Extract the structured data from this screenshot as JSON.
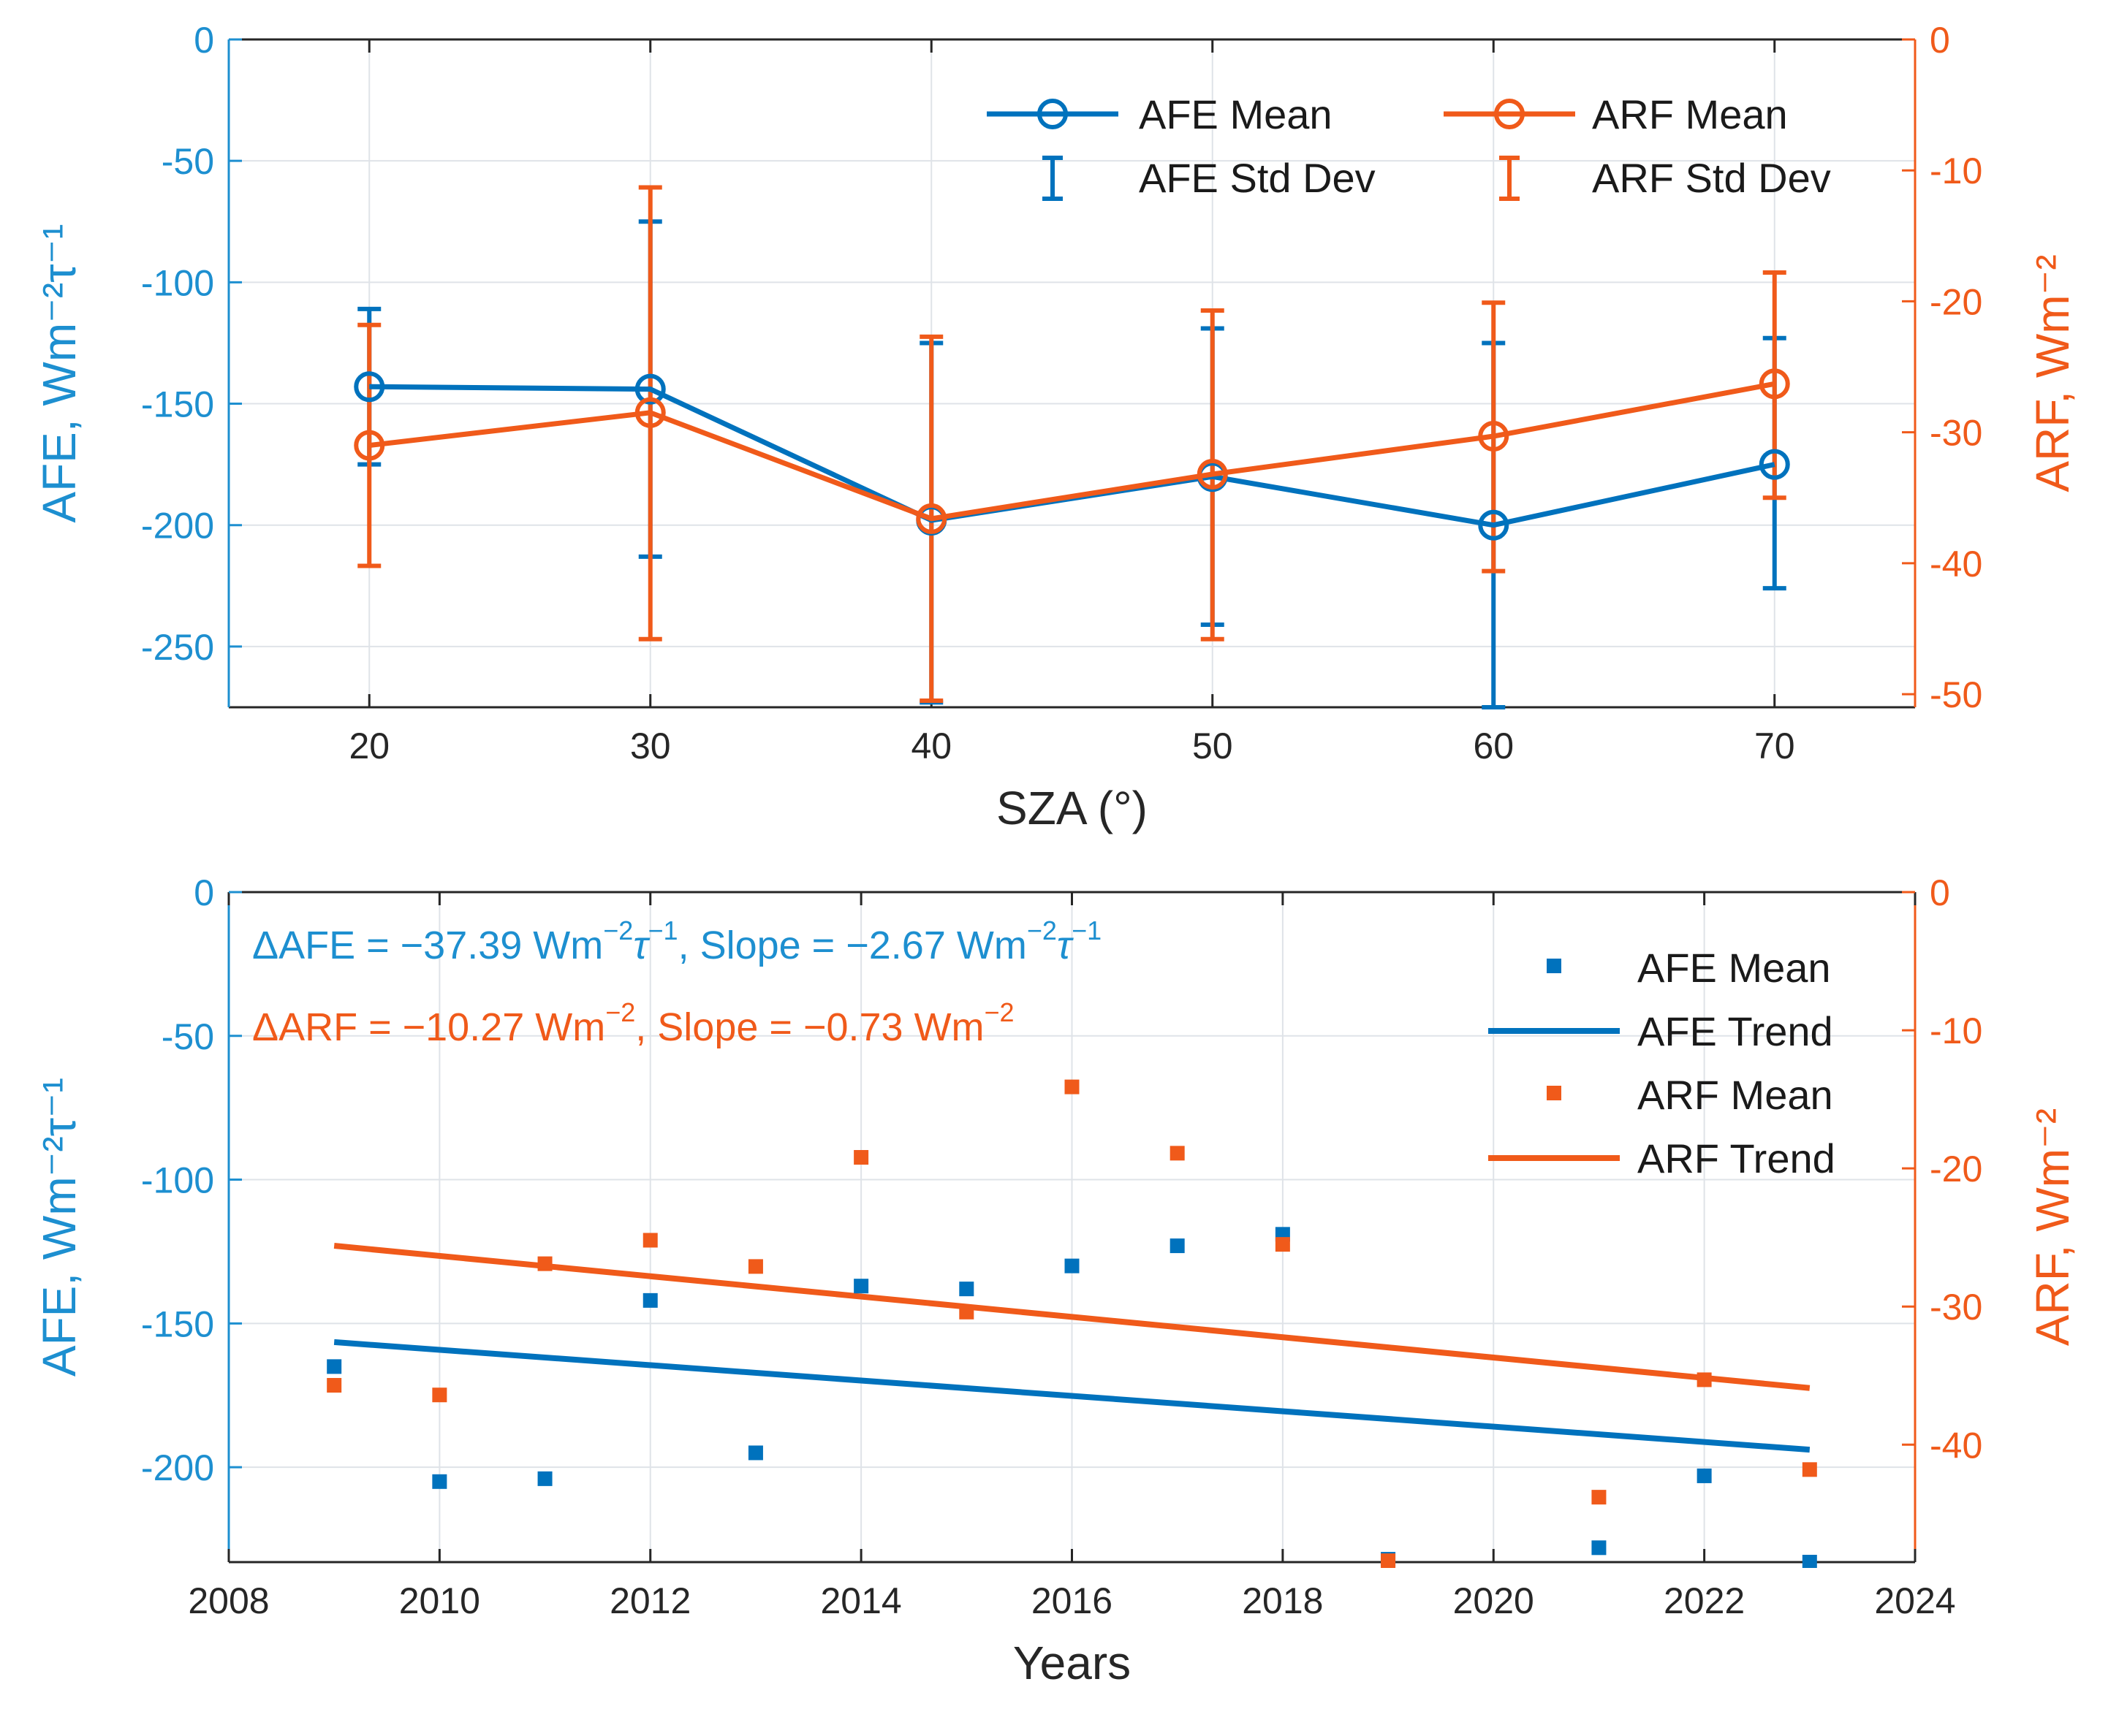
{
  "chart_data": [
    {
      "type": "line",
      "panel": "top",
      "xlabel": "SZA (°)",
      "ylabel_left": "AFE, Wm⁻²τ⁻¹",
      "ylabel_right": "ARF, Wm⁻²",
      "xlim": [
        15,
        75
      ],
      "xticks": [
        "20",
        "30",
        "40",
        "50",
        "60",
        "70"
      ],
      "ylim_left": [
        -275,
        0
      ],
      "yticks_left": [
        "0",
        "-50",
        "-100",
        "-150",
        "-200",
        "-250"
      ],
      "ylim_right": [
        -51,
        0
      ],
      "yticks_right": [
        "0",
        "-10",
        "-20",
        "-30",
        "-40",
        "-50"
      ],
      "grid": true,
      "x": [
        20,
        30,
        40,
        50,
        60,
        70
      ],
      "series": [
        {
          "name": "AFE Mean",
          "axis": "left",
          "color": "#0072bd",
          "values": [
            -143,
            -144,
            -198,
            -180,
            -200,
            -175
          ],
          "err_low": [
            -175,
            -213,
            -273,
            -241,
            -275,
            -226
          ],
          "err_high": [
            -111,
            -75,
            -125,
            -119,
            -125,
            -123
          ]
        },
        {
          "name": "ARF Mean",
          "axis": "right",
          "color": "#f05a1a",
          "values": [
            -31,
            -28.5,
            -36.6,
            -33.2,
            -30.3,
            -26.3
          ],
          "err_low": [
            -40.2,
            -45.8,
            -50.5,
            -45.8,
            -40.6,
            -35
          ],
          "err_high": [
            -21.8,
            -11.3,
            -22.7,
            -20.7,
            -20.1,
            -17.8
          ]
        }
      ],
      "legend": {
        "position": "top-right",
        "items": [
          "AFE Mean",
          "ARF Mean",
          "AFE Std Dev",
          "ARF Std Dev"
        ]
      }
    },
    {
      "type": "scatter",
      "panel": "bottom",
      "xlabel": "Years",
      "ylabel_left": "AFE, Wm⁻²τ⁻¹",
      "ylabel_right": "ARF, Wm⁻²",
      "xlim": [
        2008,
        2024
      ],
      "xticks": [
        "2008",
        "2010",
        "2012",
        "2014",
        "2016",
        "2018",
        "2020",
        "2022",
        "2024"
      ],
      "ylim_left": [
        -233,
        0
      ],
      "yticks_left": [
        "0",
        "-50",
        "-100",
        "-150",
        "-200"
      ],
      "ylim_right": [
        -48.5,
        0
      ],
      "yticks_right": [
        "0",
        "-10",
        "-20",
        "-30",
        "-40"
      ],
      "grid": true,
      "years": [
        2009,
        2010,
        2011,
        2012,
        2013,
        2014,
        2015,
        2016,
        2017,
        2018,
        2019,
        2021,
        2022,
        2023
      ],
      "series": [
        {
          "name": "AFE Mean",
          "axis": "left",
          "color": "#0072bd",
          "values": [
            -165,
            -205,
            -204,
            -142,
            -195,
            -137,
            -138,
            -130,
            -123,
            -119,
            -232,
            -228,
            -203,
            -233
          ]
        },
        {
          "name": "ARF Mean",
          "axis": "right",
          "color": "#f05a1a",
          "values": [
            -35.7,
            -36.4,
            -26.9,
            -25.2,
            -27.1,
            -19.2,
            -30.4,
            -14.1,
            -18.9,
            -25.5,
            -48.4,
            -43.8,
            -35.3,
            -41.8
          ]
        }
      ],
      "trends": [
        {
          "name": "AFE Trend",
          "axis": "left",
          "color": "#0072bd",
          "x": [
            2009,
            2023
          ],
          "values": [
            -156.5,
            -193.9
          ]
        },
        {
          "name": "ARF Trend",
          "axis": "right",
          "color": "#f05a1a",
          "x": [
            2009,
            2023
          ],
          "values": [
            -25.6,
            -35.9
          ]
        }
      ],
      "annotations": [
        {
          "color": "#0072bd",
          "prefix": "ΔAFE = −37.39 Wm",
          "exp1": "−2",
          "mid1": "τ",
          "exp2": "−1",
          "mid2": ", Slope = −2.67 Wm",
          "exp3": "−2",
          "mid3": "τ",
          "exp4": "−1"
        },
        {
          "color": "#f05a1a",
          "prefix": "ΔARF = −10.27 Wm",
          "exp1": "−2",
          "mid1": ", Slope = −0.73 Wm",
          "exp2": "−2"
        }
      ],
      "legend": {
        "position": "top-right",
        "items": [
          "AFE Mean",
          "AFE Trend",
          "ARF Mean",
          "ARF Trend"
        ]
      }
    }
  ]
}
